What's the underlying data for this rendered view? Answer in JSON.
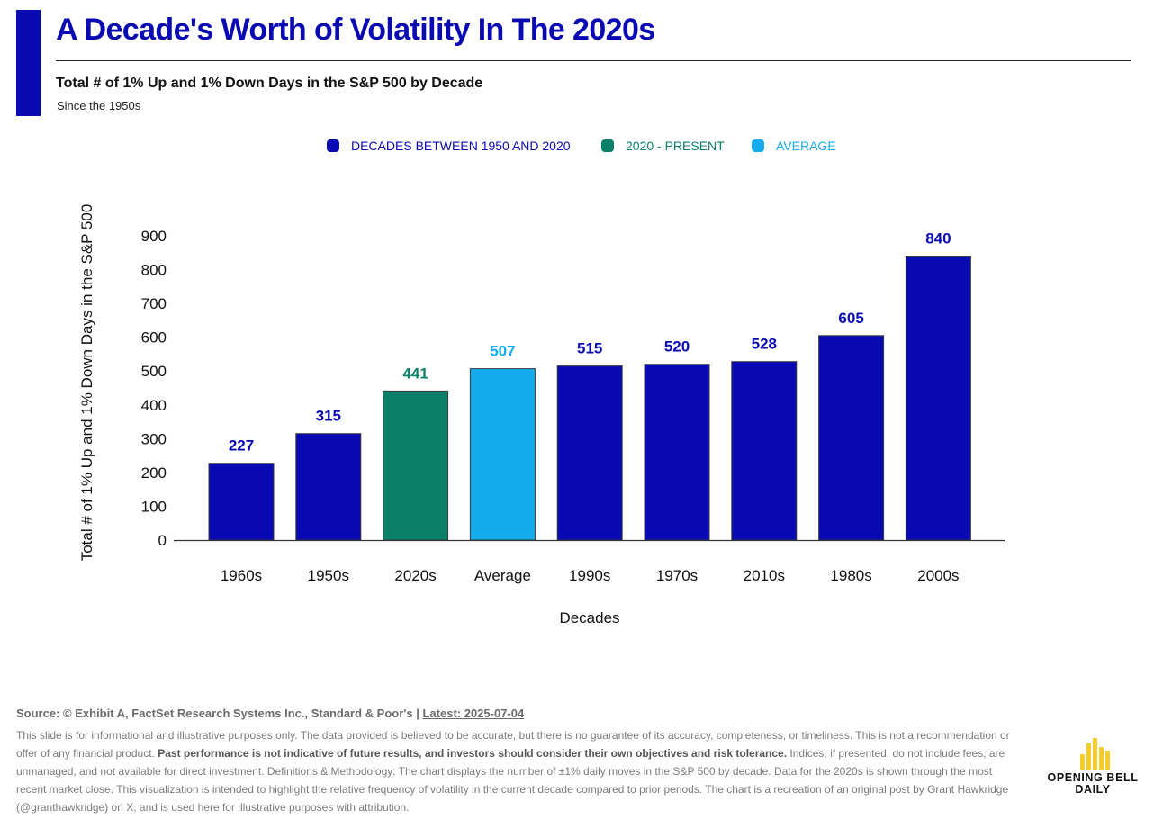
{
  "header": {
    "title": "A Decade's Worth of Volatility In The 2020s",
    "subtitle": "Total # of 1% Up and 1% Down Days in the S&P 500 by Decade",
    "subsubtitle": "Since the 1950s"
  },
  "legend": [
    {
      "label": "DECADES BETWEEN 1950 AND 2020",
      "color": "#0a0ab4"
    },
    {
      "label": "2020 - PRESENT",
      "color": "#0b8068"
    },
    {
      "label": "AVERAGE",
      "color": "#15aced"
    }
  ],
  "chart_data": {
    "type": "bar",
    "title": "Total # of 1% Up and 1% Down Days in the S&P 500 by Decade",
    "subtitle": "Since the 1950s",
    "xlabel": "Decades",
    "ylabel": "Total # of 1% Up and 1% Down Days in the S&P 500",
    "categories": [
      "1960s",
      "1950s",
      "2020s",
      "Average",
      "1990s",
      "1970s",
      "2010s",
      "1980s",
      "2000s"
    ],
    "values": [
      227,
      315,
      441,
      507,
      515,
      520,
      528,
      605,
      840
    ],
    "bar_groups": [
      "decade",
      "decade",
      "present",
      "average",
      "decade",
      "decade",
      "decade",
      "decade",
      "decade"
    ],
    "group_colors": {
      "decade": "#0a0ab4",
      "present": "#0b8068",
      "average": "#15aced"
    },
    "ylim": [
      0,
      900
    ],
    "yticks": [
      0,
      100,
      200,
      300,
      400,
      500,
      600,
      700,
      800,
      900
    ],
    "grid": false,
    "legend_position": "top-center"
  },
  "footer": {
    "source_label": "Source: © Exhibit A, FactSet Research Systems Inc., Standard & Poor's |",
    "latest_label": "Latest: 2025-07-04",
    "disclaimer_1": "This slide is for informational and illustrative purposes only. The data provided is believed to be accurate, but there is no guarantee of its accuracy, completeness, or timeliness. This is not a recommendation or offer of any financial product.",
    "disclaimer_bold": "Past performance is not indicative of future results, and investors should consider their own objectives and risk tolerance.",
    "disclaimer_2": "Indices, if presented, do not include fees, are unmanaged, and not available for direct investment. Definitions & Methodology: The chart displays the number of ±1% daily moves in the S&P 500 by decade. Data for the 2020s is shown through the most recent market close. This visualization is intended to highlight the relative frequency of volatility in the current decade compared to prior periods. The chart is a recreation of an original post by Grant Hawkridge (@granthawkridge) on X, and is used here for illustrative purposes with attribution."
  },
  "logo": {
    "line1": "OPENING BELL",
    "line2": "DAILY",
    "color": "#f2cd2b"
  }
}
